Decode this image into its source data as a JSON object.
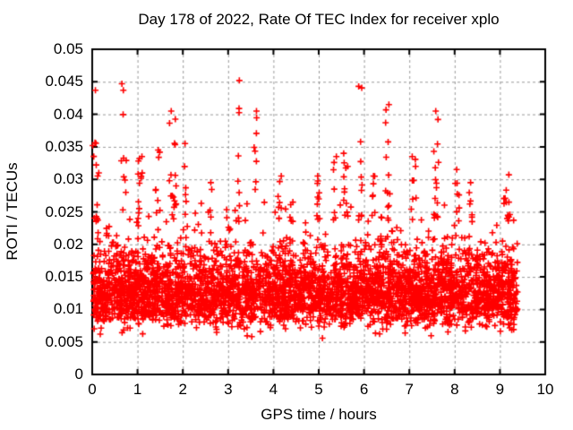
{
  "title": "Day 178 of 2022, Rate Of TEC Index for receiver xplo",
  "colors": {
    "marker": "#ff0000",
    "grid": "#999999",
    "axis": "#000000",
    "background": "#ffffff",
    "text": "#000000"
  },
  "chart_data": {
    "type": "scatter",
    "title": "Day 178 of 2022, Rate Of TEC Index for receiver xplo",
    "xlabel": "GPS time / hours",
    "ylabel": "ROTI / TECUs",
    "xlim": [
      0,
      10
    ],
    "ylim": [
      0,
      0.05
    ],
    "xtick_values": [
      0,
      1,
      2,
      3,
      4,
      5,
      6,
      7,
      8,
      9,
      10
    ],
    "xtick_labels": [
      "0",
      "1",
      "2",
      "3",
      "4",
      "5",
      "6",
      "7",
      "8",
      "9",
      "10"
    ],
    "ytick_values": [
      0,
      0.005,
      0.01,
      0.015,
      0.02,
      0.025,
      0.03,
      0.035,
      0.04,
      0.045,
      0.05
    ],
    "ytick_labels": [
      "0",
      "0.005",
      "0.01",
      "0.015",
      "0.02",
      "0.025",
      "0.03",
      "0.035",
      "0.04",
      "0.045",
      "0.05"
    ],
    "grid": true,
    "grid_style": "dashed",
    "legend": false,
    "marker": "+",
    "marker_color": "#ff0000",
    "x_data_range": [
      0.02,
      9.39
    ],
    "y_data_range": [
      0.004,
      0.0452
    ],
    "y_dense_band": [
      0.007,
      0.025
    ],
    "scatter_model": {
      "seed": 20220178,
      "n_base": 4000,
      "y_log_median": 0.0127,
      "y_log_sigma": 0.24,
      "y_clip_min": 0.004,
      "y_clip_max": 0.0265,
      "spike_floor": 0.0235,
      "spikes": [
        {
          "x": 0.05,
          "n": 8,
          "y_max": 0.0437,
          "spread": 0.04
        },
        {
          "x": 0.12,
          "n": 6,
          "y_max": 0.031,
          "spread": 0.05
        },
        {
          "x": 0.7,
          "n": 10,
          "y_max": 0.0447,
          "spread": 0.06
        },
        {
          "x": 1.05,
          "n": 12,
          "y_max": 0.0335,
          "spread": 0.06
        },
        {
          "x": 1.45,
          "n": 8,
          "y_max": 0.0345,
          "spread": 0.05
        },
        {
          "x": 1.78,
          "n": 18,
          "y_max": 0.0405,
          "spread": 0.08
        },
        {
          "x": 2.05,
          "n": 6,
          "y_max": 0.0355,
          "spread": 0.04
        },
        {
          "x": 2.6,
          "n": 5,
          "y_max": 0.0295,
          "spread": 0.05
        },
        {
          "x": 3.2,
          "n": 10,
          "y_max": 0.0452,
          "spread": 0.05
        },
        {
          "x": 3.6,
          "n": 8,
          "y_max": 0.0405,
          "spread": 0.05
        },
        {
          "x": 4.15,
          "n": 6,
          "y_max": 0.0305,
          "spread": 0.05
        },
        {
          "x": 4.4,
          "n": 5,
          "y_max": 0.0265,
          "spread": 0.04
        },
        {
          "x": 5.0,
          "n": 9,
          "y_max": 0.0305,
          "spread": 0.05
        },
        {
          "x": 5.35,
          "n": 7,
          "y_max": 0.0335,
          "spread": 0.04
        },
        {
          "x": 5.6,
          "n": 12,
          "y_max": 0.034,
          "spread": 0.05
        },
        {
          "x": 5.92,
          "n": 10,
          "y_max": 0.0443,
          "spread": 0.04
        },
        {
          "x": 6.2,
          "n": 7,
          "y_max": 0.0305,
          "spread": 0.04
        },
        {
          "x": 6.52,
          "n": 12,
          "y_max": 0.0415,
          "spread": 0.05
        },
        {
          "x": 7.1,
          "n": 8,
          "y_max": 0.0335,
          "spread": 0.05
        },
        {
          "x": 7.6,
          "n": 16,
          "y_max": 0.0405,
          "spread": 0.06
        },
        {
          "x": 8.05,
          "n": 8,
          "y_max": 0.0315,
          "spread": 0.05
        },
        {
          "x": 8.35,
          "n": 6,
          "y_max": 0.0295,
          "spread": 0.04
        },
        {
          "x": 9.15,
          "n": 12,
          "y_max": 0.0307,
          "spread": 0.07
        }
      ]
    }
  }
}
